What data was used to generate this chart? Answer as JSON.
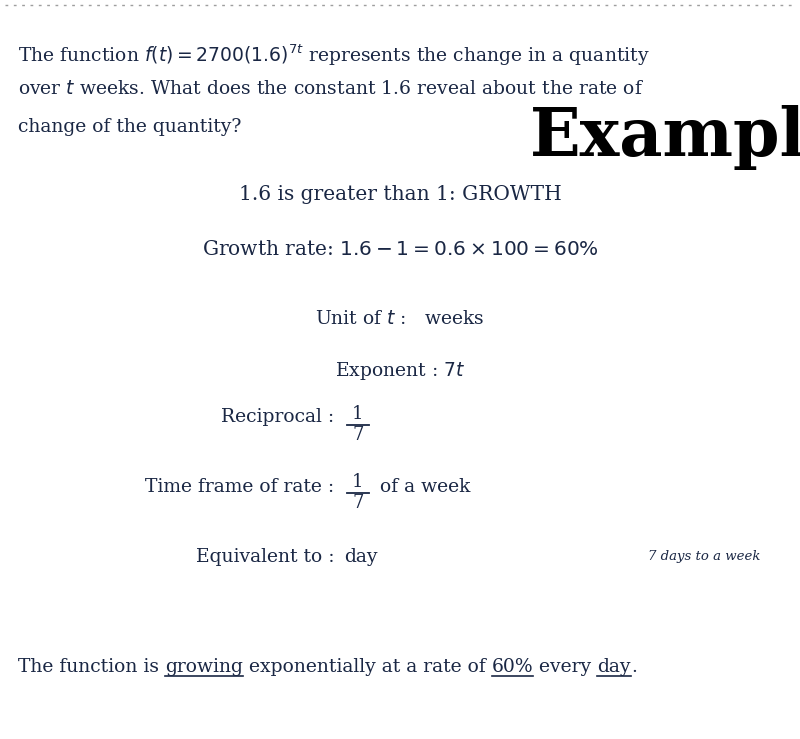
{
  "bg_color": "#ffffff",
  "border_color": "#9e9e9e",
  "text_color": "#1a2744",
  "figsize": [
    8.0,
    7.39
  ],
  "dpi": 100,
  "example_label": "Example",
  "line1": "1.6 is greater than 1: GROWTH",
  "side_note": "7 days to a week",
  "segments": [
    [
      "The function is ",
      false
    ],
    [
      "growing",
      true
    ],
    [
      " exponentially at a rate of ",
      false
    ],
    [
      "60%",
      true
    ],
    [
      " every ",
      false
    ],
    [
      "day",
      true
    ],
    [
      ".",
      false
    ]
  ]
}
